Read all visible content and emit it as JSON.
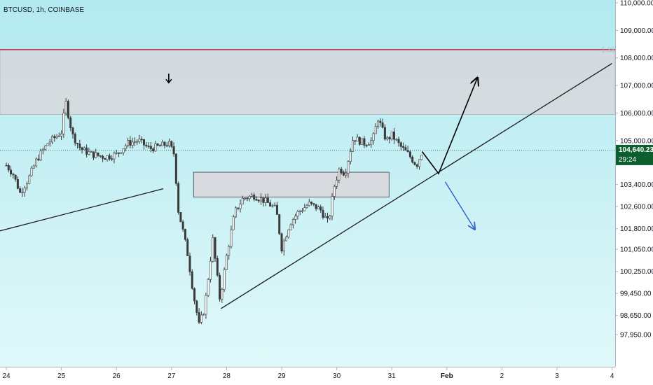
{
  "chart_data": {
    "type": "candlestick",
    "title": "BTCUSD, 1h, COINBASE",
    "xlabel": "",
    "ylabel": "",
    "ylim": [
      97500,
      110000
    ],
    "grid": false,
    "price_ticks": [
      "110,000.00",
      "109,000.00",
      "108,000.00",
      "107,000.00",
      "106,000.00",
      "105,000.00",
      "103,400.00",
      "102,600.00",
      "101,800.00",
      "101,050.00",
      "100,250.00",
      "99,450.00",
      "98,650.00",
      "97,950.00"
    ],
    "time_ticks": [
      {
        "label": "24",
        "day": 24
      },
      {
        "label": "25",
        "day": 25
      },
      {
        "label": "26",
        "day": 26
      },
      {
        "label": "27",
        "day": 27
      },
      {
        "label": "28",
        "day": 28
      },
      {
        "label": "29",
        "day": 29
      },
      {
        "label": "30",
        "day": 30
      },
      {
        "label": "31",
        "day": 31
      },
      {
        "label": "Feb",
        "day": 32
      },
      {
        "label": "2",
        "day": 33
      },
      {
        "label": "3",
        "day": 34
      },
      {
        "label": "4",
        "day": 35
      }
    ],
    "last_price": {
      "value": "104,640.23",
      "countdown": "29:24",
      "price": 104640
    },
    "fib_label": "1.38",
    "resistance_level": 108300,
    "supply_zone": {
      "top": 108300,
      "bottom": 105950
    },
    "demand_zone": {
      "day_start": 27.4,
      "day_end": 30.95,
      "top": 103850,
      "bottom": 102950
    },
    "price_path": [
      [
        24.0,
        104100
      ],
      [
        24.12,
        103800
      ],
      [
        24.25,
        103100
      ],
      [
        24.4,
        103600
      ],
      [
        24.55,
        104300
      ],
      [
        24.75,
        104900
      ],
      [
        25.0,
        105300
      ],
      [
        25.08,
        106400
      ],
      [
        25.2,
        105200
      ],
      [
        25.35,
        104700
      ],
      [
        25.55,
        104500
      ],
      [
        25.8,
        104400
      ],
      [
        26.0,
        104500
      ],
      [
        26.2,
        104900
      ],
      [
        26.4,
        105000
      ],
      [
        26.6,
        104700
      ],
      [
        26.8,
        104800
      ],
      [
        26.95,
        104900
      ],
      [
        27.05,
        104500
      ],
      [
        27.12,
        102500
      ],
      [
        27.2,
        101800
      ],
      [
        27.3,
        100800
      ],
      [
        27.4,
        99400
      ],
      [
        27.5,
        98300
      ],
      [
        27.6,
        98900
      ],
      [
        27.75,
        101400
      ],
      [
        27.88,
        99200
      ],
      [
        28.0,
        100800
      ],
      [
        28.15,
        102400
      ],
      [
        28.3,
        102900
      ],
      [
        28.5,
        103000
      ],
      [
        28.7,
        102800
      ],
      [
        28.9,
        102500
      ],
      [
        29.0,
        101100
      ],
      [
        29.15,
        102000
      ],
      [
        29.3,
        102400
      ],
      [
        29.5,
        102700
      ],
      [
        29.7,
        102500
      ],
      [
        29.85,
        102000
      ],
      [
        29.95,
        103300
      ],
      [
        30.05,
        104000
      ],
      [
        30.15,
        103800
      ],
      [
        30.3,
        105100
      ],
      [
        30.5,
        104900
      ],
      [
        30.65,
        105000
      ],
      [
        30.75,
        105800
      ],
      [
        30.9,
        105000
      ],
      [
        31.0,
        105200
      ],
      [
        31.15,
        104800
      ],
      [
        31.3,
        104500
      ],
      [
        31.45,
        104100
      ],
      [
        31.55,
        104600
      ]
    ],
    "trendlines": [
      {
        "kind": "black",
        "points": [
          [
            23.75,
            101650
          ],
          [
            26.85,
            103250
          ]
        ]
      },
      {
        "kind": "black",
        "points": [
          [
            27.9,
            98900
          ],
          [
            35.0,
            107800
          ]
        ]
      },
      {
        "kind": "projection-up",
        "points": [
          [
            31.55,
            104600
          ],
          [
            31.85,
            103800
          ],
          [
            32.55,
            107250
          ]
        ]
      },
      {
        "kind": "projection-down",
        "points": [
          [
            31.97,
            103500
          ],
          [
            32.5,
            101800
          ]
        ]
      }
    ],
    "markers": [
      {
        "kind": "down-arrow",
        "day": 26.95,
        "price": 107250
      }
    ],
    "colors": {
      "bg_top": "#b2e9f0",
      "bg_bottom": "#e0f8f9",
      "candle": "#3a3a3a",
      "resistance": "#b8283a",
      "zone": "#d8d8dd",
      "last_price_badge": "#0d5e2e",
      "projection_down": "#2f62c8",
      "projection_up": "#000000"
    }
  }
}
